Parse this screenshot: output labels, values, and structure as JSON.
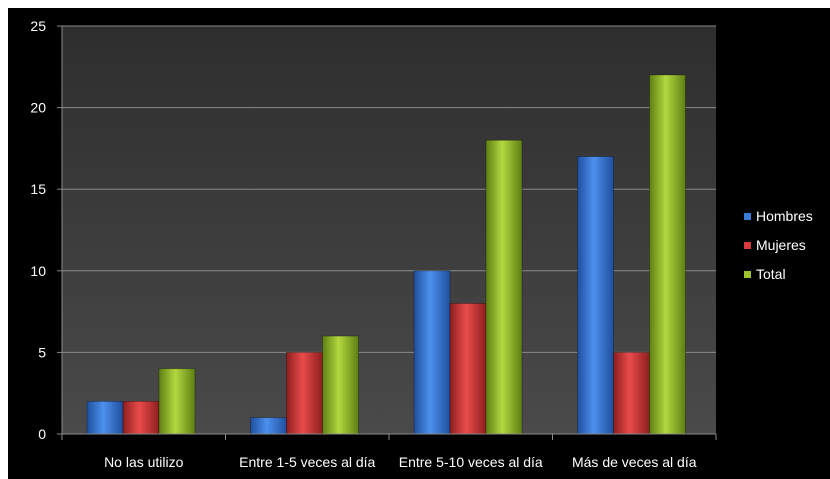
{
  "chart_data": {
    "type": "bar",
    "categories": [
      "No las utilizo",
      "Entre 1-5 veces al día",
      "Entre 5-10 veces al día",
      "Más de veces al día"
    ],
    "series": [
      {
        "name": "Hombres",
        "values": [
          2,
          1,
          10,
          17
        ]
      },
      {
        "name": "Mujeres",
        "values": [
          2,
          5,
          8,
          5
        ]
      },
      {
        "name": "Total",
        "values": [
          4,
          6,
          18,
          22
        ]
      }
    ],
    "y_ticks": [
      0,
      5,
      10,
      15,
      20,
      25
    ],
    "ylim": [
      0,
      25
    ],
    "grid": true,
    "legend": "right",
    "colors": {
      "Hombres": "#3a7bd8",
      "Mujeres": "#d63a3a",
      "Total": "#9cc22e",
      "background": "#000000",
      "plot_background": "#3c3c3c",
      "grid": "#8a8a8a",
      "text": "#ffffff"
    }
  }
}
